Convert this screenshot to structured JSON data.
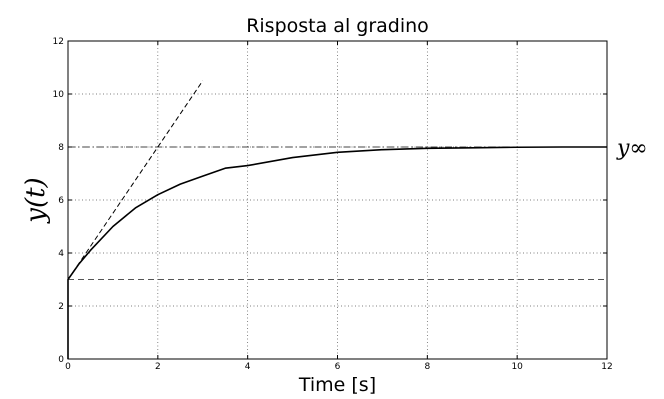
{
  "chart_data": {
    "type": "line",
    "title": "Risposta al gradino",
    "xlabel": "Time [s]",
    "ylabel": "y(t)",
    "xlim": [
      0,
      12
    ],
    "ylim": [
      0,
      12
    ],
    "xticks": [
      0,
      2,
      4,
      6,
      8,
      10,
      12
    ],
    "yticks": [
      0,
      2,
      4,
      6,
      8,
      10,
      12
    ],
    "grid": true,
    "annotation": "y∞",
    "series": [
      {
        "style": "solid",
        "x": [
          0,
          0,
          0.25,
          0.5,
          1,
          1.5,
          2,
          2.5,
          3,
          3.5,
          4,
          5,
          6,
          7,
          8,
          9,
          10,
          11,
          12
        ],
        "y": [
          0,
          3,
          3.6,
          4.1,
          5.0,
          5.7,
          6.2,
          6.6,
          6.9,
          7.2,
          7.3,
          7.6,
          7.8,
          7.9,
          7.95,
          7.97,
          7.99,
          8.0,
          8.0
        ]
      },
      {
        "style": "dashed",
        "x": [
          0,
          3
        ],
        "y": [
          3,
          10.5
        ]
      },
      {
        "style": "dash-dot",
        "x": [
          0,
          12
        ],
        "y": [
          8,
          8
        ]
      },
      {
        "style": "dashed-gray",
        "x": [
          0,
          12
        ],
        "y": [
          3,
          3
        ]
      }
    ]
  }
}
